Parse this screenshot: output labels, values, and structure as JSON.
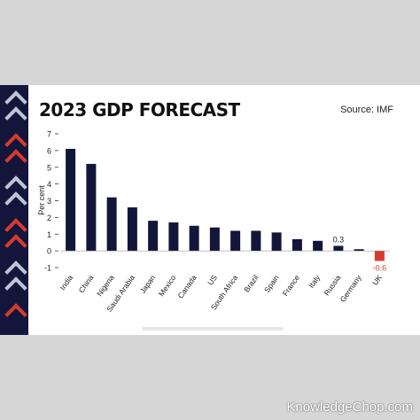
{
  "title": "2023 GDP FORECAST",
  "source": "Source: IMF",
  "watermark": "KnowledgeChop.com",
  "colors": {
    "bar": "#13163a",
    "negative_bar": "#d63b2f",
    "negative_label": "#d63b2f"
  },
  "chart_data": {
    "type": "bar",
    "title": "2023 GDP FORECAST",
    "ylabel": "Per cent",
    "xlabel": "",
    "ylim": [
      -1,
      7
    ],
    "yticks": [
      -1,
      0,
      1,
      2,
      3,
      4,
      5,
      6,
      7
    ],
    "grid": false,
    "categories": [
      "India",
      "China",
      "Nigeria",
      "Saudi Arabia",
      "Japan",
      "Mexico",
      "Canada",
      "US",
      "South Africa",
      "Brazil",
      "Spain",
      "France",
      "Italy",
      "Russia",
      "Germany",
      "UK"
    ],
    "values": [
      6.1,
      5.2,
      3.2,
      2.6,
      1.8,
      1.7,
      1.5,
      1.4,
      1.2,
      1.2,
      1.1,
      0.7,
      0.6,
      0.3,
      0.1,
      -0.6
    ],
    "data_labels": [
      {
        "category": "Russia",
        "text": "0.3"
      },
      {
        "category": "UK",
        "text": "-0.6"
      }
    ]
  }
}
